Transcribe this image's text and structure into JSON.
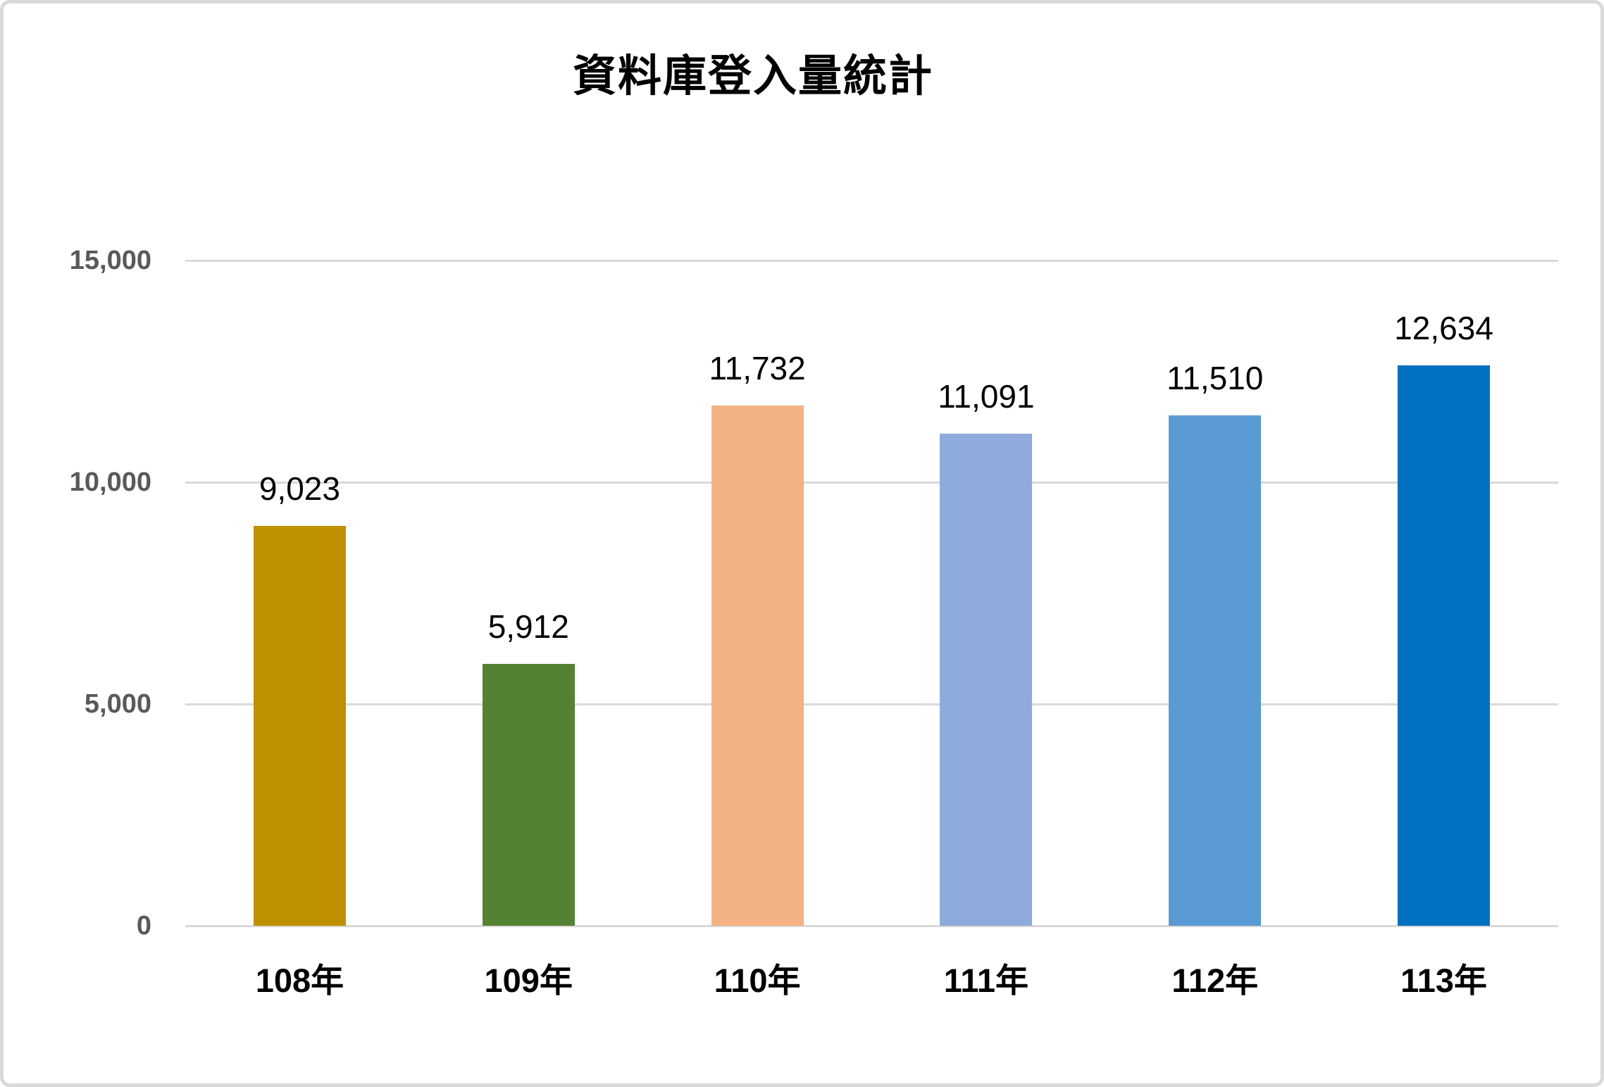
{
  "chart_data": {
    "type": "bar",
    "title": "資料庫登入量統計",
    "categories": [
      "108年",
      "109年",
      "110年",
      "111年",
      "112年",
      "113年"
    ],
    "values": [
      9023,
      5912,
      11732,
      11091,
      11510,
      12634
    ],
    "data_labels": [
      "9,023",
      "5,912",
      "11,732",
      "11,091",
      "11,510",
      "12,634"
    ],
    "bar_colors": [
      "#BF9000",
      "#538234",
      "#F4B183",
      "#8FAADC",
      "#5B9BD5",
      "#0070C0"
    ],
    "xlabel": "",
    "ylabel": "",
    "ylim": [
      0,
      15000
    ],
    "y_ticks": [
      {
        "value": 0,
        "label": "0"
      },
      {
        "value": 5000,
        "label": "5,000"
      },
      {
        "value": 10000,
        "label": "10,000"
      },
      {
        "value": 15000,
        "label": "15,000"
      }
    ],
    "grid": true,
    "legend": "none"
  },
  "colors": {
    "background": "#FFFFFF",
    "canvas_border": "#D9D9D9",
    "grid_line": "#D9D9D9",
    "axis_tick_label": "#595959",
    "data_label": "#000000",
    "title": "#000000"
  }
}
